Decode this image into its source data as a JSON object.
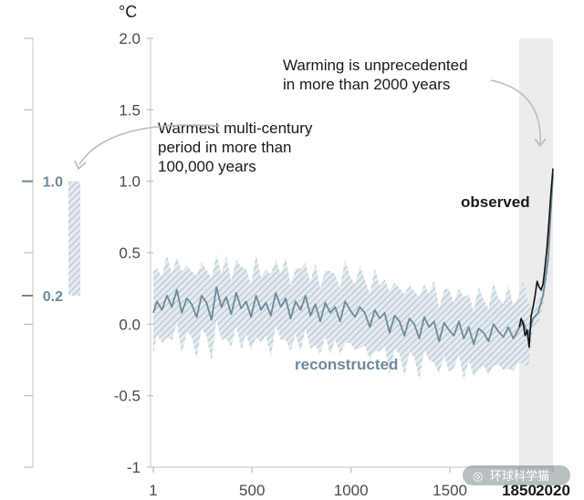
{
  "chart_data": {
    "type": "line",
    "unit": "°C",
    "ylim": [
      -1,
      2
    ],
    "yticks": [
      "2.0",
      "1.5",
      "1.0",
      "0.5",
      "0.0",
      "-0.5",
      "-1"
    ],
    "ytick_values": [
      2.0,
      1.5,
      1.0,
      0.5,
      0.0,
      -0.5,
      -1.0
    ],
    "xticks": [
      "1",
      "500",
      "1000",
      "1500",
      "1850",
      "2020"
    ],
    "xtick_values": [
      1,
      500,
      1000,
      1500,
      1850,
      2020
    ],
    "shaded_period": [
      1850,
      2020
    ],
    "left_range": {
      "high_label": "1.0",
      "low_label": "0.2",
      "high": 1.0,
      "low": 0.2
    },
    "annotations": {
      "warmest": [
        "Warmest multi-century",
        "period in more than",
        "100,000 years"
      ],
      "unprecedented": [
        "Warming is unprecedented",
        "in more than 2000 years"
      ]
    },
    "series": [
      {
        "name": "reconstructed",
        "label": "reconstructed",
        "color": "#6f8a99",
        "x": [
          1,
          20,
          45,
          70,
          95,
          120,
          145,
          170,
          195,
          220,
          245,
          270,
          295,
          320,
          345,
          370,
          395,
          420,
          445,
          470,
          495,
          520,
          545,
          570,
          595,
          620,
          645,
          670,
          695,
          720,
          745,
          770,
          795,
          820,
          845,
          870,
          895,
          920,
          945,
          970,
          995,
          1020,
          1045,
          1070,
          1095,
          1120,
          1145,
          1170,
          1195,
          1220,
          1245,
          1270,
          1295,
          1320,
          1345,
          1370,
          1395,
          1420,
          1445,
          1470,
          1495,
          1520,
          1545,
          1570,
          1595,
          1620,
          1645,
          1670,
          1695,
          1720,
          1745,
          1770,
          1795,
          1820,
          1845,
          1870,
          1895,
          1920,
          1945,
          1970,
          1995,
          2020
        ],
        "values": [
          0.08,
          0.16,
          0.1,
          0.2,
          0.12,
          0.24,
          0.08,
          0.18,
          0.14,
          0.05,
          0.2,
          0.15,
          0.03,
          0.26,
          0.12,
          0.19,
          0.07,
          0.22,
          0.11,
          0.16,
          0.05,
          0.2,
          0.1,
          0.15,
          0.06,
          0.22,
          0.12,
          0.18,
          0.04,
          0.16,
          0.1,
          0.2,
          0.06,
          0.14,
          0.02,
          0.15,
          0.08,
          0.12,
          0.02,
          0.16,
          0.1,
          0.05,
          0.12,
          0.08,
          -0.02,
          0.1,
          0.04,
          0.08,
          -0.06,
          0.06,
          0.02,
          -0.08,
          0.04,
          0.0,
          -0.1,
          0.05,
          -0.02,
          0.02,
          -0.12,
          0.01,
          -0.04,
          -0.08,
          0.02,
          -0.1,
          -0.02,
          -0.14,
          -0.03,
          -0.06,
          -0.12,
          0.0,
          -0.05,
          -0.09,
          -0.02,
          -0.1,
          -0.04,
          0.02,
          -0.08,
          0.04,
          0.08,
          0.2,
          0.45,
          1.05
        ]
      },
      {
        "name": "observed",
        "label": "observed",
        "color": "#111111",
        "x": [
          1850,
          1860,
          1870,
          1880,
          1890,
          1900,
          1910,
          1920,
          1930,
          1940,
          1950,
          1960,
          1970,
          1980,
          1990,
          2000,
          2010,
          2020
        ],
        "values": [
          -0.02,
          0.04,
          0.0,
          -0.08,
          -0.04,
          -0.16,
          0.06,
          0.12,
          0.2,
          0.3,
          0.26,
          0.24,
          0.28,
          0.4,
          0.54,
          0.72,
          0.92,
          1.09
        ]
      }
    ]
  },
  "watermark": "环球科学猫"
}
